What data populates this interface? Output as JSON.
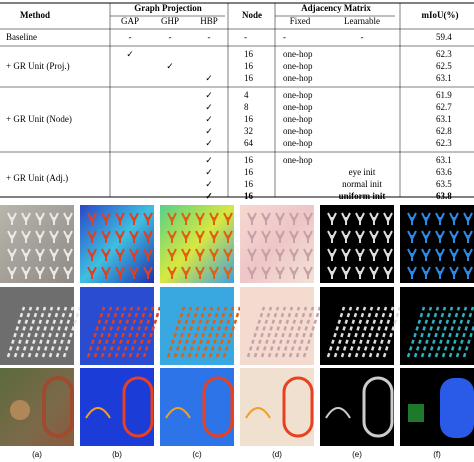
{
  "table": {
    "header": {
      "method": "Method",
      "graph_projection": "Graph Projection",
      "gap": "GAP",
      "ghp": "GHP",
      "hbp": "HBP",
      "node": "Node",
      "adjacency_matrix": "Adjacency Matrix",
      "fixed": "Fixed",
      "learnable": "Learnable",
      "miou": "mIoU(%)"
    },
    "groups": [
      {
        "method": "Baseline",
        "rows": [
          {
            "gap": "-",
            "ghp": "-",
            "hbp": "-",
            "node": "-",
            "fixed": "-",
            "learnable": "-",
            "miou": 59.4
          }
        ]
      },
      {
        "method": "+ GR Unit (Proj.)",
        "rows": [
          {
            "gap": "✓",
            "node": 16,
            "fixed": "one-hop",
            "miou": 62.3
          },
          {
            "ghp": "✓",
            "node": 16,
            "fixed": "one-hop",
            "miou": 62.5
          },
          {
            "hbp": "✓",
            "node": 16,
            "fixed": "one-hop",
            "miou": 63.1
          }
        ]
      },
      {
        "method": "+ GR Unit (Node)",
        "rows": [
          {
            "hbp": "✓",
            "node": 4,
            "fixed": "one-hop",
            "miou": 61.9
          },
          {
            "hbp": "✓",
            "node": 8,
            "fixed": "one-hop",
            "miou": 62.7
          },
          {
            "hbp": "✓",
            "node": 16,
            "fixed": "one-hop",
            "miou": 63.1
          },
          {
            "hbp": "✓",
            "node": 32,
            "fixed": "one-hop",
            "miou": 62.8
          },
          {
            "hbp": "✓",
            "node": 64,
            "fixed": "one-hop",
            "miou": 62.3
          }
        ]
      },
      {
        "method": "+ GR Unit (Adj.)",
        "rows": [
          {
            "hbp": "✓",
            "node": 16,
            "fixed": "one-hop",
            "miou": 63.1
          },
          {
            "hbp": "✓",
            "node": 16,
            "learnable": "eye init",
            "miou": 63.6
          },
          {
            "hbp": "✓",
            "node": 16,
            "learnable": "normal init",
            "miou": 63.5
          },
          {
            "hbp": "✓",
            "node": 16,
            "learnable": "uniform init",
            "miou": 63.8,
            "bold": true
          }
        ]
      }
    ]
  },
  "figure": {
    "labels": [
      "(a)",
      "(b)",
      "(c)",
      "(d)",
      "(e)",
      "(f)"
    ]
  }
}
